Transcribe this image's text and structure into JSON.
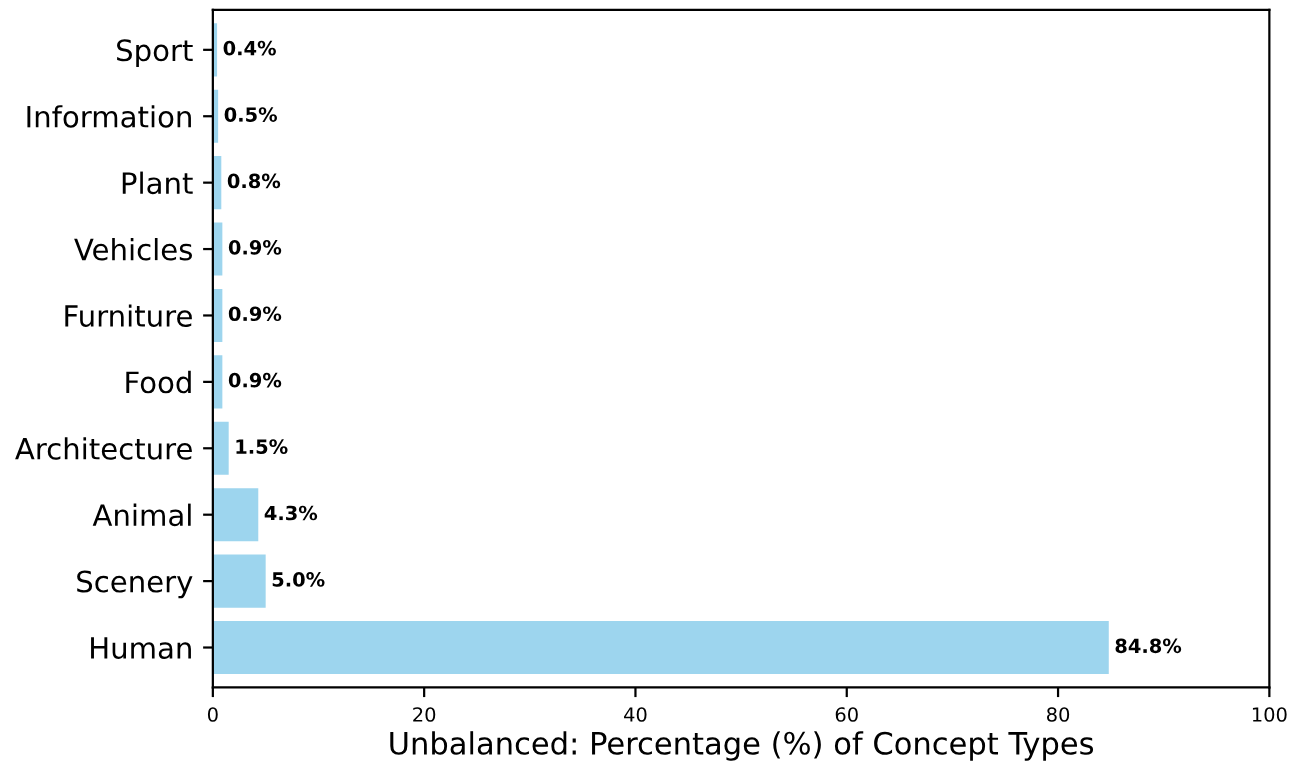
{
  "chart_data": {
    "type": "bar",
    "orientation": "horizontal",
    "xlabel": "Unbalanced: Percentage (%) of Concept Types",
    "categories": [
      "Sport",
      "Information",
      "Plant",
      "Vehicles",
      "Furniture",
      "Food",
      "Architecture",
      "Animal",
      "Scenery",
      "Human"
    ],
    "values": [
      0.4,
      0.5,
      0.8,
      0.9,
      0.9,
      0.9,
      1.5,
      4.3,
      5.0,
      84.8
    ],
    "value_labels": [
      "0.4%",
      "0.5%",
      "0.8%",
      "0.9%",
      "0.9%",
      "0.9%",
      "1.5%",
      "4.3%",
      "5.0%",
      "84.8%"
    ],
    "color": "#9dd5ee",
    "xlim": [
      0,
      100
    ],
    "xticks": [
      0,
      20,
      40,
      60,
      80,
      100
    ],
    "grid": false
  }
}
